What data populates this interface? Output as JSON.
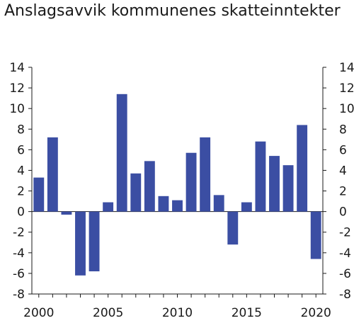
{
  "chart_data": {
    "type": "bar",
    "title": "Anslagsavvik kommunenes skatteinntekter",
    "xlabel": "",
    "ylabel": "",
    "ylim": [
      -8,
      14
    ],
    "yticks": [
      14,
      12,
      10,
      8,
      6,
      4,
      2,
      0,
      -2,
      -4,
      -6,
      -8
    ],
    "xtick_labels": [
      "2000",
      "2005",
      "2010",
      "2015",
      "2020"
    ],
    "categories": [
      2000,
      2001,
      2002,
      2003,
      2004,
      2005,
      2006,
      2007,
      2008,
      2009,
      2010,
      2011,
      2012,
      2013,
      2014,
      2015,
      2016,
      2017,
      2018,
      2019,
      2020
    ],
    "values": [
      3.3,
      7.2,
      -0.3,
      -6.2,
      -5.8,
      0.9,
      11.4,
      3.7,
      4.9,
      1.5,
      1.1,
      5.7,
      7.2,
      1.6,
      -3.2,
      0.9,
      6.8,
      5.4,
      4.5,
      8.4,
      -4.6
    ],
    "bar_color": "#3b4ea3",
    "axis_color": "#1a1a1a",
    "grid": false,
    "right_axis_mirror": true
  }
}
